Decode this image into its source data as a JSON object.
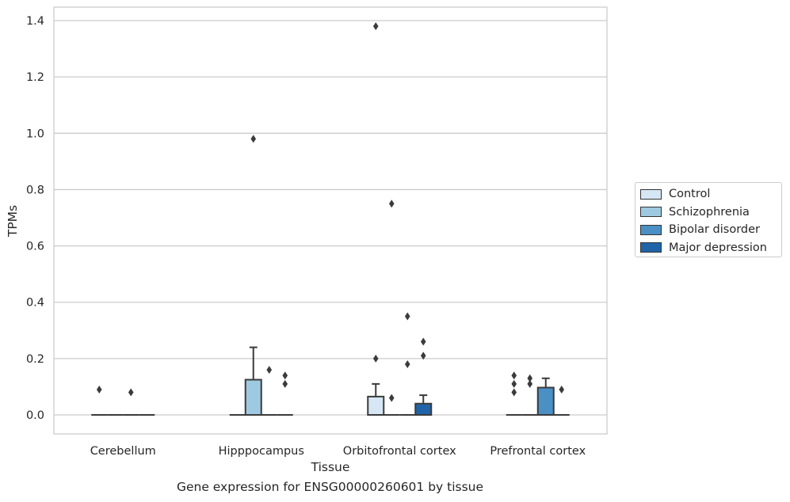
{
  "caption": "Gene expression for ENSG00000260601 by tissue",
  "chart_data": {
    "type": "box",
    "title": "",
    "xlabel": "Tissue",
    "ylabel": "TPMs",
    "ylim": [
      -0.07,
      1.45
    ],
    "yticks": [
      0.0,
      0.2,
      0.4,
      0.6,
      0.8,
      1.0,
      1.2,
      1.4
    ],
    "ytick_labels": [
      "0.0",
      "0.2",
      "0.4",
      "0.6",
      "0.8",
      "1.0",
      "1.2",
      "1.4"
    ],
    "grid": "horizontal",
    "legend_placement": "center-right outside",
    "categories": [
      "Cerebellum",
      "Hipppocampus",
      "Orbitofrontal cortex",
      "Prefrontal cortex"
    ],
    "series": [
      {
        "name": "Control",
        "color": "#d6e6f4",
        "boxes": [
          {
            "q1": 0,
            "median": 0,
            "q3": 0,
            "whisker_low": 0,
            "whisker_high": 0,
            "outliers": [
              0.09
            ]
          },
          {
            "q1": 0,
            "median": 0,
            "q3": 0,
            "whisker_low": 0,
            "whisker_high": 0,
            "outliers": []
          },
          {
            "q1": 0,
            "median": 0,
            "q3": 0.065,
            "whisker_low": 0,
            "whisker_high": 0.11,
            "outliers": [
              1.38,
              0.2
            ]
          },
          {
            "q1": 0,
            "median": 0,
            "q3": 0,
            "whisker_low": 0,
            "whisker_high": 0,
            "outliers": [
              0.14,
              0.11,
              0.08
            ]
          }
        ]
      },
      {
        "name": "Schizophrenia",
        "color": "#9ecae1",
        "boxes": [
          {
            "q1": 0,
            "median": 0,
            "q3": 0,
            "whisker_low": 0,
            "whisker_high": 0,
            "outliers": []
          },
          {
            "q1": 0,
            "median": 0,
            "q3": 0.125,
            "whisker_low": 0,
            "whisker_high": 0.24,
            "outliers": [
              0.98
            ]
          },
          {
            "q1": 0,
            "median": 0,
            "q3": 0,
            "whisker_low": 0,
            "whisker_high": 0,
            "outliers": [
              0.75,
              0.06
            ]
          },
          {
            "q1": 0,
            "median": 0,
            "q3": 0,
            "whisker_low": 0,
            "whisker_high": 0,
            "outliers": [
              0.13,
              0.11
            ]
          }
        ]
      },
      {
        "name": "Bipolar disorder",
        "color": "#4a90c4",
        "boxes": [
          {
            "q1": 0,
            "median": 0,
            "q3": 0,
            "whisker_low": 0,
            "whisker_high": 0,
            "outliers": [
              0.08
            ]
          },
          {
            "q1": 0,
            "median": 0,
            "q3": 0,
            "whisker_low": 0,
            "whisker_high": 0,
            "outliers": [
              0.16
            ]
          },
          {
            "q1": 0,
            "median": 0,
            "q3": 0,
            "whisker_low": 0,
            "whisker_high": 0,
            "outliers": [
              0.35,
              0.18
            ]
          },
          {
            "q1": 0,
            "median": 0,
            "q3": 0.097,
            "whisker_low": 0,
            "whisker_high": 0.13,
            "outliers": []
          }
        ]
      },
      {
        "name": "Major depression",
        "color": "#1f64a8",
        "boxes": [
          {
            "q1": 0,
            "median": 0,
            "q3": 0,
            "whisker_low": 0,
            "whisker_high": 0,
            "outliers": []
          },
          {
            "q1": 0,
            "median": 0,
            "q3": 0,
            "whisker_low": 0,
            "whisker_high": 0,
            "outliers": [
              0.14,
              0.11
            ]
          },
          {
            "q1": 0,
            "median": 0,
            "q3": 0.04,
            "whisker_low": 0,
            "whisker_high": 0.07,
            "outliers": [
              0.26,
              0.21
            ]
          },
          {
            "q1": 0,
            "median": 0,
            "q3": 0,
            "whisker_low": 0,
            "whisker_high": 0,
            "outliers": [
              0.09
            ]
          }
        ]
      }
    ]
  }
}
